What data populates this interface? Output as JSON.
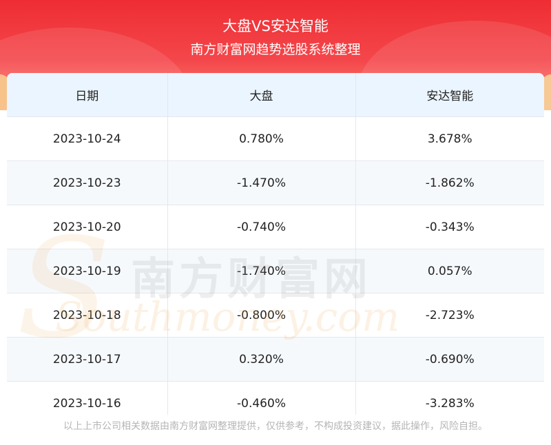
{
  "header": {
    "title": "大盘VS安达智能",
    "subtitle": "南方财富网趋势选股系统整理"
  },
  "table": {
    "columns": [
      "日期",
      "大盘",
      "安达智能"
    ],
    "rows": [
      [
        "2023-10-24",
        "0.780%",
        "3.678%"
      ],
      [
        "2023-10-23",
        "-1.470%",
        "-1.862%"
      ],
      [
        "2023-10-20",
        "-0.740%",
        "-0.343%"
      ],
      [
        "2023-10-19",
        "-1.740%",
        "0.057%"
      ],
      [
        "2023-10-18",
        "-0.800%",
        "-2.723%"
      ],
      [
        "2023-10-17",
        "0.320%",
        "-0.690%"
      ],
      [
        "2023-10-16",
        "-0.460%",
        "-3.283%"
      ]
    ]
  },
  "watermark": {
    "chinese": "南方财富网",
    "english": "Southmoney.com",
    "logo_letter": "S"
  },
  "footer": {
    "disclaimer": "以上上市公司相关数据由南方财富网整理提供，仅供参考，不构成投资建议，据此操作，风险自担。"
  },
  "colors": {
    "banner_red": "#ee2d33",
    "header_row_bg": "#ebf5ff",
    "watermark_orange": "#f0af64"
  }
}
